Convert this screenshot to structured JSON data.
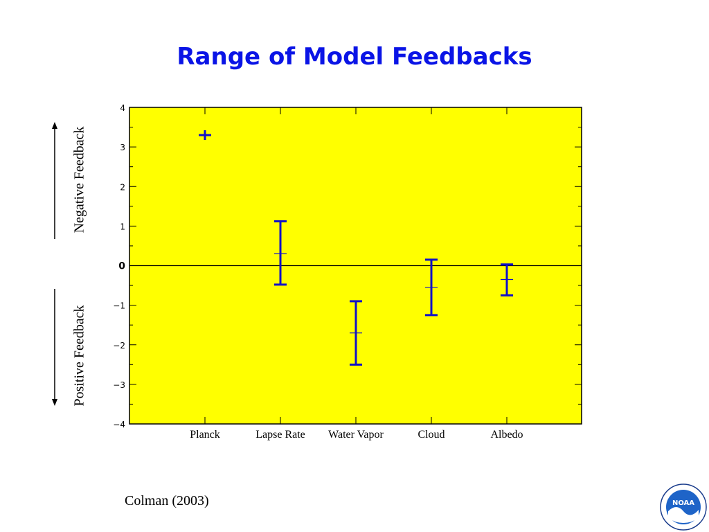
{
  "slide": {
    "title": "Range of Model Feedbacks",
    "negative_label": "Negative Feedback",
    "positive_label": "Positive Feedback",
    "citation": "Colman (2003)",
    "logo_text": "NOAA"
  },
  "colors": {
    "plot_background": "#ffff00",
    "error_bar": "#1010c8",
    "title": "#0a14e6"
  },
  "chart_data": {
    "type": "errorbar",
    "title": "",
    "xlabel": "",
    "ylabel": "",
    "categories": [
      "Planck",
      "Lapse Rate",
      "Water Vapor",
      "Cloud",
      "Albedo"
    ],
    "center": [
      3.3,
      0.3,
      -1.7,
      -0.55,
      -0.35
    ],
    "low": [
      3.3,
      -0.48,
      -2.5,
      -1.25,
      -0.75
    ],
    "high": [
      3.3,
      1.12,
      -0.9,
      0.15,
      0.03
    ],
    "ylim": [
      -4,
      4
    ],
    "yticks": [
      4,
      3,
      2,
      1,
      0,
      -1,
      -2,
      -3,
      -4
    ],
    "ytick_labels": [
      "4",
      "3",
      "2",
      "1",
      "0",
      "−1",
      "−2",
      "−3",
      "−4"
    ],
    "zero_line": true,
    "grid": false,
    "legend": "none"
  }
}
